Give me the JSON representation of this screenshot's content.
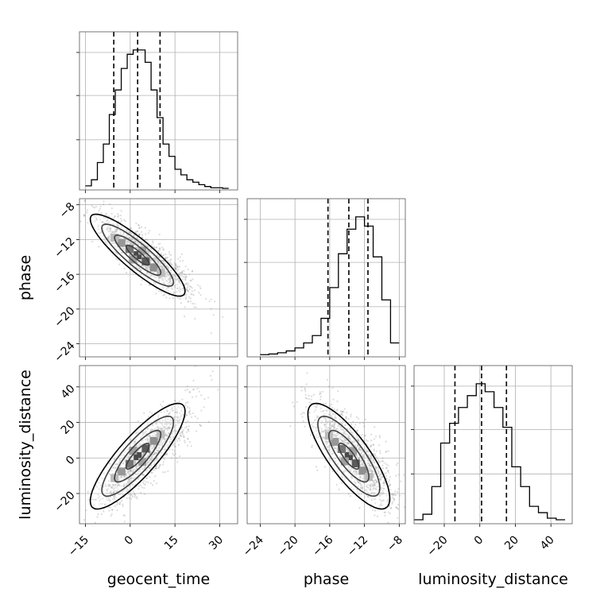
{
  "chart_data": {
    "type": "scatter",
    "subtype": "corner plot",
    "parameters": [
      "geocent_time",
      "phase",
      "luminosity_distance"
    ],
    "labels": {
      "geocent_time": "geocent_time",
      "phase": "phase",
      "luminosity_distance": "luminosity_distance"
    },
    "ranges": {
      "geocent_time": [
        -17,
        36
      ],
      "phase": [
        -25.5,
        -7.3
      ],
      "luminosity_distance": [
        -37,
        52
      ]
    },
    "ticks": {
      "geocent_time": [
        -15,
        0,
        15,
        30
      ],
      "phase": [
        -24,
        -20,
        -16,
        -12,
        -8
      ],
      "luminosity_distance": [
        -20,
        0,
        20,
        40
      ]
    },
    "quantiles": {
      "geocent_time": [
        -5.5,
        2.5,
        10.0
      ],
      "phase": [
        -16.2,
        -13.8,
        -11.6
      ],
      "luminosity_distance": [
        -14,
        1,
        15
      ]
    },
    "histograms": {
      "geocent_time": {
        "edges": [
          -15,
          -13,
          -11,
          -9,
          -7,
          -5,
          -3,
          -1,
          1,
          3,
          5,
          7,
          9,
          11,
          13,
          15,
          17,
          19,
          21,
          23,
          25,
          27,
          29,
          31,
          33
        ],
        "counts": [
          4,
          14,
          42,
          72,
          120,
          160,
          195,
          218,
          225,
          225,
          205,
          160,
          115,
          72,
          52,
          31,
          22,
          14,
          10,
          6,
          3,
          1,
          1,
          0
        ]
      },
      "phase": {
        "edges": [
          -24,
          -23,
          -22,
          -21,
          -20,
          -19,
          -18,
          -17,
          -16,
          -15,
          -14,
          -13,
          -12,
          -11,
          -10,
          -9,
          -8
        ],
        "counts": [
          1,
          2,
          4,
          7,
          12,
          20,
          32,
          60,
          110,
          165,
          205,
          225,
          210,
          160,
          90,
          20
        ]
      },
      "luminosity_distance": {
        "edges": [
          -37,
          -32,
          -27,
          -22,
          -17,
          -12,
          -7,
          -2,
          3,
          8,
          13,
          18,
          23,
          28,
          33,
          38,
          43,
          48
        ],
        "counts": [
          3,
          10,
          45,
          100,
          125,
          145,
          160,
          175,
          165,
          145,
          120,
          70,
          45,
          20,
          12,
          5,
          3
        ]
      }
    },
    "correlations": {
      "phase|geocent_time": -0.88,
      "luminosity_distance|geocent_time": 0.85,
      "luminosity_distance|phase": -0.8
    },
    "grid": true,
    "point_color": "#808080",
    "line_color": "#000000"
  }
}
